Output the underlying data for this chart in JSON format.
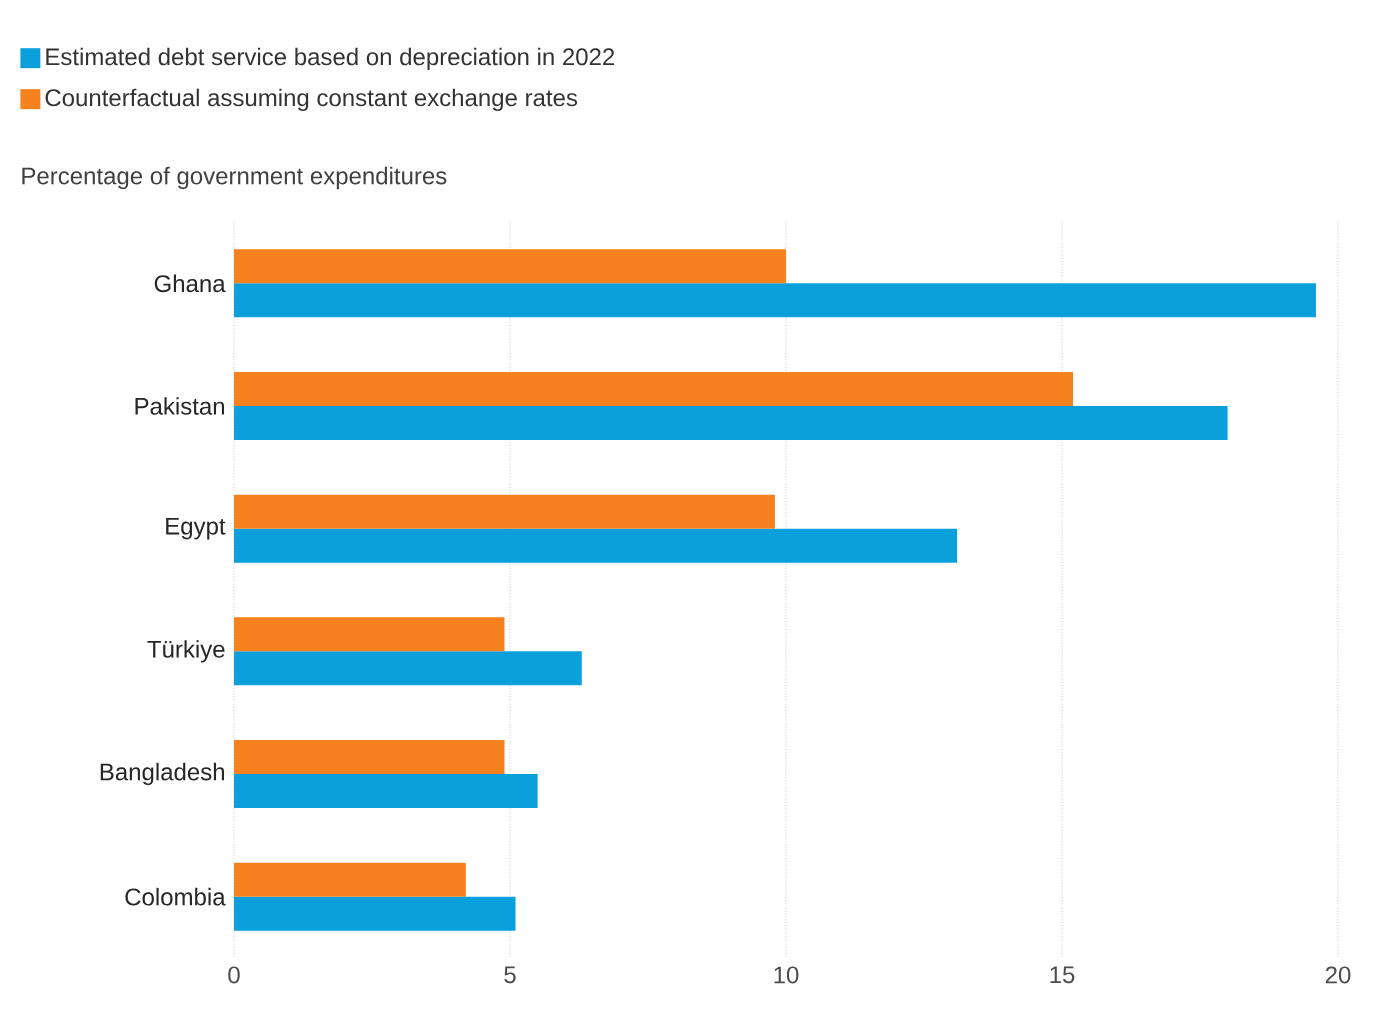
{
  "chart_data": {
    "type": "bar",
    "orientation": "horizontal",
    "subtitle": "Percentage of government expenditures",
    "categories": [
      "Ghana",
      "Pakistan",
      "Egypt",
      "Türkiye",
      "Bangladesh",
      "Colombia"
    ],
    "series": [
      {
        "name": "Estimated debt service based on depreciation in 2022",
        "color": "#0ba0dc",
        "values": [
          19.6,
          18.0,
          13.1,
          6.3,
          5.5,
          5.1
        ]
      },
      {
        "name": "Counterfactual assuming constant exchange rates",
        "color": "#f5821f",
        "values": [
          10.0,
          15.2,
          9.8,
          4.9,
          4.9,
          4.2
        ]
      }
    ],
    "xlim": [
      0,
      20
    ],
    "xticks": [
      0,
      5,
      10,
      15,
      20
    ],
    "grid": "x",
    "legend": "top left"
  }
}
